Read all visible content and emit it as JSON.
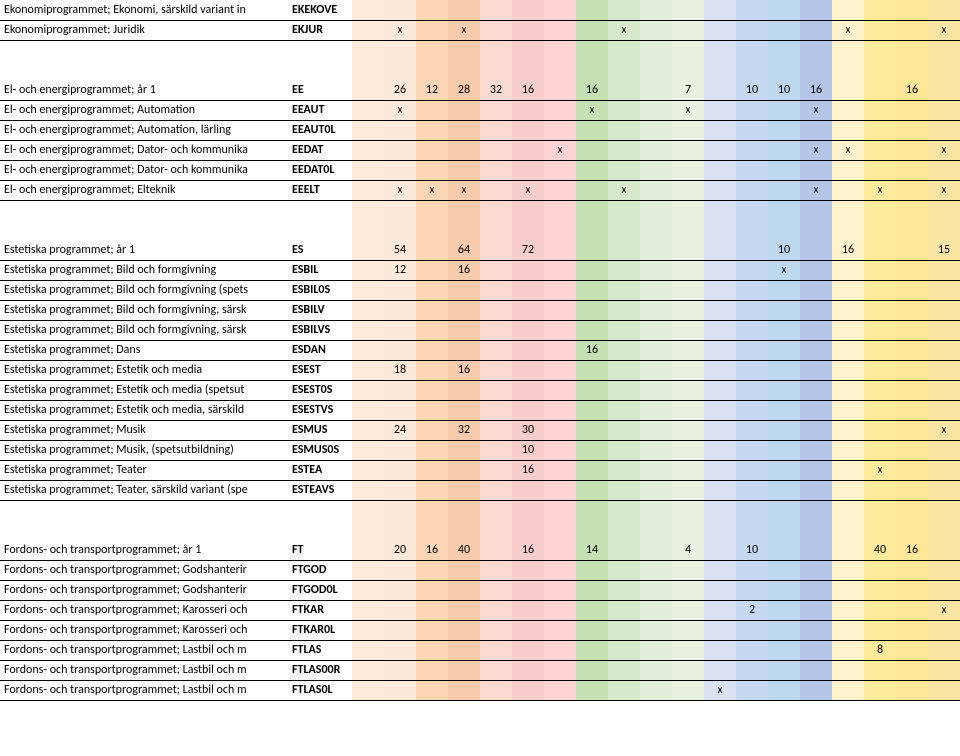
{
  "col_colors": [
    "#fdeada",
    "#fde9d9",
    "#fcd5b4",
    "#f8cbad",
    "#fbdad2",
    "#f8cdcb",
    "#ffd3d3",
    "#c5e0b3",
    "#d6e9c9",
    "#e2efda",
    "#eaf1e0",
    "#d9e1f2",
    "#c5d9f1",
    "#bdd7ee",
    "#b4c6e7",
    "#fff2cc",
    "#ffeb9c",
    "#ffe699",
    "#fbe5a3"
  ],
  "sections": [
    {
      "type": "row",
      "label": "Ekonomiprogrammet; Ekonomi, särskild variant in",
      "code": "EKEKOVE",
      "bold": true,
      "cells": [
        "",
        "",
        "",
        "",
        "",
        "",
        "",
        "",
        "",
        "",
        "",
        "",
        "",
        "",
        "",
        "",
        "",
        "",
        ""
      ]
    },
    {
      "type": "row",
      "label": "Ekonomiprogrammet; Juridik",
      "code": "EKJUR",
      "bold": true,
      "cells": [
        "",
        "x",
        "",
        "x",
        "",
        "",
        "",
        "",
        "x",
        "",
        "",
        "",
        "",
        "",
        "",
        "x",
        "",
        "",
        "x"
      ]
    },
    {
      "type": "blank"
    },
    {
      "type": "blank"
    },
    {
      "type": "row",
      "label": "El- och energiprogrammet; år 1",
      "code": "EE",
      "bold": true,
      "cells": [
        "",
        "26",
        "12",
        "28",
        "32",
        "16",
        "",
        "16",
        "",
        "",
        "7",
        "",
        "10",
        "10",
        "16",
        "",
        "",
        "16",
        ""
      ]
    },
    {
      "type": "row",
      "label": "El- och energiprogrammet; Automation",
      "code": "EEAUT",
      "bold": true,
      "cells": [
        "",
        "x",
        "",
        "",
        "",
        "",
        "",
        "x",
        "",
        "",
        "x",
        "",
        "",
        "",
        "x",
        "",
        "",
        "",
        ""
      ]
    },
    {
      "type": "row",
      "label": "El- och energiprogrammet; Automation, lärling",
      "code": "EEAUT0L",
      "bold": true,
      "cells": [
        "",
        "",
        "",
        "",
        "",
        "",
        "",
        "",
        "",
        "",
        "",
        "",
        "",
        "",
        "",
        "",
        "",
        "",
        ""
      ]
    },
    {
      "type": "row",
      "label": "El- och energiprogrammet; Dator- och kommunika",
      "code": "EEDAT",
      "bold": true,
      "cells": [
        "",
        "",
        "",
        "",
        "",
        "",
        "x",
        "",
        "",
        "",
        "",
        "",
        "",
        "",
        "x",
        "x",
        "",
        "",
        "x"
      ]
    },
    {
      "type": "row",
      "label": "El- och energiprogrammet; Dator- och kommunika",
      "code": "EEDAT0L",
      "bold": true,
      "cells": [
        "",
        "",
        "",
        "",
        "",
        "",
        "",
        "",
        "",
        "",
        "",
        "",
        "",
        "",
        "",
        "",
        "",
        "",
        ""
      ]
    },
    {
      "type": "row",
      "label": "El- och energiprogrammet; Elteknik",
      "code": "EEELT",
      "bold": true,
      "cells": [
        "",
        "x",
        "x",
        "x",
        "",
        "x",
        "",
        "",
        "x",
        "",
        "",
        "",
        "",
        "",
        "x",
        "",
        "x",
        "",
        "x"
      ]
    },
    {
      "type": "blank"
    },
    {
      "type": "blank"
    },
    {
      "type": "row",
      "label": "Estetiska programmet; år 1",
      "code": "ES",
      "bold": true,
      "cells": [
        "",
        "54",
        "",
        "64",
        "",
        "72",
        "",
        "",
        "",
        "",
        "",
        "",
        "",
        "10",
        "",
        "16",
        "",
        "",
        "15"
      ]
    },
    {
      "type": "row",
      "label": "Estetiska programmet; Bild och formgivning",
      "code": "ESBIL",
      "bold": true,
      "cells": [
        "",
        "12",
        "",
        "16",
        "",
        "",
        "",
        "",
        "",
        "",
        "",
        "",
        "",
        "x",
        "",
        "",
        "",
        "",
        ""
      ]
    },
    {
      "type": "row",
      "label": "Estetiska programmet; Bild och formgivning (spets",
      "code": "ESBIL0S",
      "bold": true,
      "cells": [
        "",
        "",
        "",
        "",
        "",
        "",
        "",
        "",
        "",
        "",
        "",
        "",
        "",
        "",
        "",
        "",
        "",
        "",
        ""
      ]
    },
    {
      "type": "row",
      "label": "Estetiska programmet; Bild och formgivning, särsk",
      "code": "ESBILV",
      "bold": true,
      "cells": [
        "",
        "",
        "",
        "",
        "",
        "",
        "",
        "",
        "",
        "",
        "",
        "",
        "",
        "",
        "",
        "",
        "",
        "",
        ""
      ]
    },
    {
      "type": "row",
      "label": "Estetiska programmet; Bild och formgivning, särsk",
      "code": "ESBILVS",
      "bold": true,
      "cells": [
        "",
        "",
        "",
        "",
        "",
        "",
        "",
        "",
        "",
        "",
        "",
        "",
        "",
        "",
        "",
        "",
        "",
        "",
        ""
      ]
    },
    {
      "type": "row",
      "label": "Estetiska programmet; Dans",
      "code": "ESDAN",
      "bold": true,
      "cells": [
        "",
        "",
        "",
        "",
        "",
        "",
        "",
        "16",
        "",
        "",
        "",
        "",
        "",
        "",
        "",
        "",
        "",
        "",
        ""
      ]
    },
    {
      "type": "row",
      "label": "Estetiska programmet; Estetik och media",
      "code": "ESEST",
      "bold": true,
      "cells": [
        "",
        "18",
        "",
        "16",
        "",
        "",
        "",
        "",
        "",
        "",
        "",
        "",
        "",
        "",
        "",
        "",
        "",
        "",
        ""
      ]
    },
    {
      "type": "row",
      "label": "Estetiska programmet; Estetik och media (spetsut",
      "code": "ESEST0S",
      "bold": true,
      "cells": [
        "",
        "",
        "",
        "",
        "",
        "",
        "",
        "",
        "",
        "",
        "",
        "",
        "",
        "",
        "",
        "",
        "",
        "",
        ""
      ]
    },
    {
      "type": "row",
      "label": "Estetiska programmet; Estetik och media, särskild",
      "code": "ESESTVS",
      "bold": true,
      "cells": [
        "",
        "",
        "",
        "",
        "",
        "",
        "",
        "",
        "",
        "",
        "",
        "",
        "",
        "",
        "",
        "",
        "",
        "",
        ""
      ]
    },
    {
      "type": "row",
      "label": "Estetiska programmet; Musik",
      "code": "ESMUS",
      "bold": true,
      "cells": [
        "",
        "24",
        "",
        "32",
        "",
        "30",
        "",
        "",
        "",
        "",
        "",
        "",
        "",
        "",
        "",
        "",
        "",
        "",
        "x"
      ]
    },
    {
      "type": "row",
      "label": "Estetiska programmet; Musik, (spetsutbildning)",
      "code": "ESMUS0S",
      "bold": true,
      "cells": [
        "",
        "",
        "",
        "",
        "",
        "10",
        "",
        "",
        "",
        "",
        "",
        "",
        "",
        "",
        "",
        "",
        "",
        "",
        ""
      ]
    },
    {
      "type": "row",
      "label": "Estetiska programmet; Teater",
      "code": "ESTEA",
      "bold": true,
      "cells": [
        "",
        "",
        "",
        "",
        "",
        "16",
        "",
        "",
        "",
        "",
        "",
        "",
        "",
        "",
        "",
        "",
        "x",
        "",
        ""
      ]
    },
    {
      "type": "row",
      "label": "Estetiska programmet; Teater, särskild variant (spe",
      "code": "ESTEAVS",
      "bold": true,
      "cells": [
        "",
        "",
        "",
        "",
        "",
        "",
        "",
        "",
        "",
        "",
        "",
        "",
        "",
        "",
        "",
        "",
        "",
        "",
        ""
      ]
    },
    {
      "type": "blank"
    },
    {
      "type": "blank"
    },
    {
      "type": "row",
      "label": "Fordons- och transportprogrammet; år 1",
      "code": "FT",
      "bold": true,
      "cells": [
        "",
        "20",
        "16",
        "40",
        "",
        "16",
        "",
        "14",
        "",
        "",
        "4",
        "",
        "10",
        "",
        "",
        "",
        "40",
        "16",
        ""
      ]
    },
    {
      "type": "row",
      "label": "Fordons- och transportprogrammet; Godshanterir",
      "code": "FTGOD",
      "bold": true,
      "cells": [
        "",
        "",
        "",
        "",
        "",
        "",
        "",
        "",
        "",
        "",
        "",
        "",
        "",
        "",
        "",
        "",
        "",
        "",
        ""
      ]
    },
    {
      "type": "row",
      "label": "Fordons- och transportprogrammet; Godshanterir",
      "code": "FTGOD0L",
      "bold": true,
      "cells": [
        "",
        "",
        "",
        "",
        "",
        "",
        "",
        "",
        "",
        "",
        "",
        "",
        "",
        "",
        "",
        "",
        "",
        "",
        ""
      ]
    },
    {
      "type": "row",
      "label": "Fordons- och transportprogrammet; Karosseri och",
      "code": "FTKAR",
      "bold": true,
      "cells": [
        "",
        "",
        "",
        "",
        "",
        "",
        "",
        "",
        "",
        "",
        "",
        "",
        "2",
        "",
        "",
        "",
        "",
        "",
        "x"
      ]
    },
    {
      "type": "row",
      "label": "Fordons- och transportprogrammet; Karosseri och",
      "code": "FTKAR0L",
      "bold": true,
      "cells": [
        "",
        "",
        "",
        "",
        "",
        "",
        "",
        "",
        "",
        "",
        "",
        "",
        "",
        "",
        "",
        "",
        "",
        "",
        ""
      ]
    },
    {
      "type": "row",
      "label": "Fordons- och transportprogrammet; Lastbil och m",
      "code": "FTLAS",
      "bold": true,
      "cells": [
        "",
        "",
        "",
        "",
        "",
        "",
        "",
        "",
        "",
        "",
        "",
        "",
        "",
        "",
        "",
        "",
        "8",
        "",
        ""
      ]
    },
    {
      "type": "row",
      "label": "Fordons- och transportprogrammet; Lastbil och m",
      "code": "FTLAS00R",
      "bold": true,
      "cells": [
        "",
        "",
        "",
        "",
        "",
        "",
        "",
        "",
        "",
        "",
        "",
        "",
        "",
        "",
        "",
        "",
        "",
        "",
        ""
      ]
    },
    {
      "type": "row",
      "label": "Fordons- och transportprogrammet; Lastbil och m",
      "code": "FTLAS0L",
      "bold": true,
      "cells": [
        "",
        "",
        "",
        "",
        "",
        "",
        "",
        "",
        "",
        "",
        "",
        "x",
        "",
        "",
        "",
        "",
        "",
        "",
        ""
      ]
    }
  ]
}
